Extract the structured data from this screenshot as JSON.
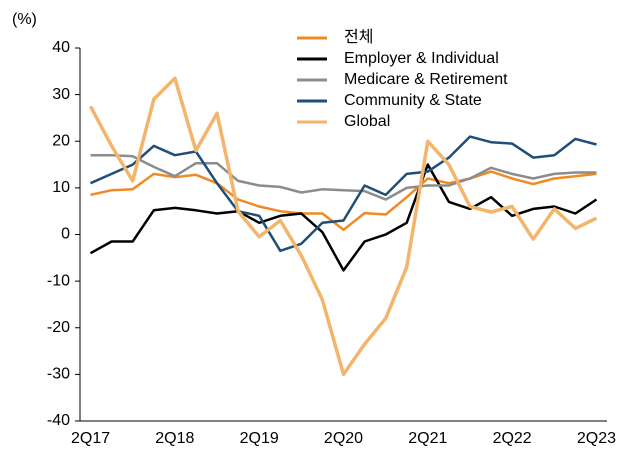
{
  "chart_data": {
    "type": "line",
    "y_label": "(%)",
    "categories": [
      "2Q17",
      null,
      null,
      null,
      "2Q18",
      null,
      null,
      null,
      "2Q19",
      null,
      null,
      null,
      "2Q20",
      null,
      null,
      null,
      "2Q21",
      null,
      null,
      null,
      "2Q22",
      null,
      null,
      null,
      "2Q23"
    ],
    "series": [
      {
        "name": "전체",
        "color": "#f08a24",
        "values": [
          8.5,
          9.5,
          9.7,
          13,
          12.3,
          12.8,
          11,
          7.5,
          6,
          5,
          4.5,
          4.5,
          1,
          4.6,
          4.3,
          8,
          12,
          11,
          12,
          13.5,
          12,
          10.8,
          12,
          12.5,
          13
        ]
      },
      {
        "name": "Employer & Individual",
        "color": "#000000",
        "values": [
          -4,
          -1.5,
          -1.5,
          5.2,
          5.7,
          5.2,
          4.5,
          5,
          2.5,
          4,
          4.5,
          0.5,
          -7.7,
          -1.5,
          0,
          2.5,
          15,
          7,
          5.5,
          8,
          4,
          5.5,
          6,
          4.5,
          7.5
        ]
      },
      {
        "name": "Medicare & Retirement",
        "color": "#8c8c8c",
        "values": [
          17,
          17,
          16.8,
          14.5,
          12.5,
          15.3,
          15.3,
          11.5,
          10.5,
          10.2,
          9,
          9.7,
          9.5,
          9.3,
          7.5,
          10,
          10.5,
          10.5,
          12,
          14.3,
          13,
          12,
          13,
          13.3,
          13.3
        ]
      },
      {
        "name": "Community & State",
        "color": "#1f4e79",
        "values": [
          11,
          13,
          15,
          19,
          17,
          17.8,
          11,
          5,
          4,
          -3.5,
          -2,
          2.5,
          3,
          10.5,
          8.5,
          13,
          13.5,
          16.5,
          21,
          19.8,
          19.5,
          16.5,
          17,
          20.5,
          19.3
        ]
      },
      {
        "name": "Global",
        "color": "#f2b56b",
        "values": [
          27.5,
          19,
          11.5,
          29,
          33.5,
          18,
          26,
          5,
          -0.5,
          3,
          -4.5,
          -14,
          -30,
          -23.5,
          -18,
          -7,
          20,
          15,
          6,
          4.8,
          6,
          -1,
          5.5,
          1.3,
          3.5
        ]
      }
    ],
    "ylim": [
      -40,
      40
    ],
    "yticks": [
      -40,
      -30,
      -20,
      -10,
      0,
      10,
      20,
      30,
      40
    ]
  }
}
